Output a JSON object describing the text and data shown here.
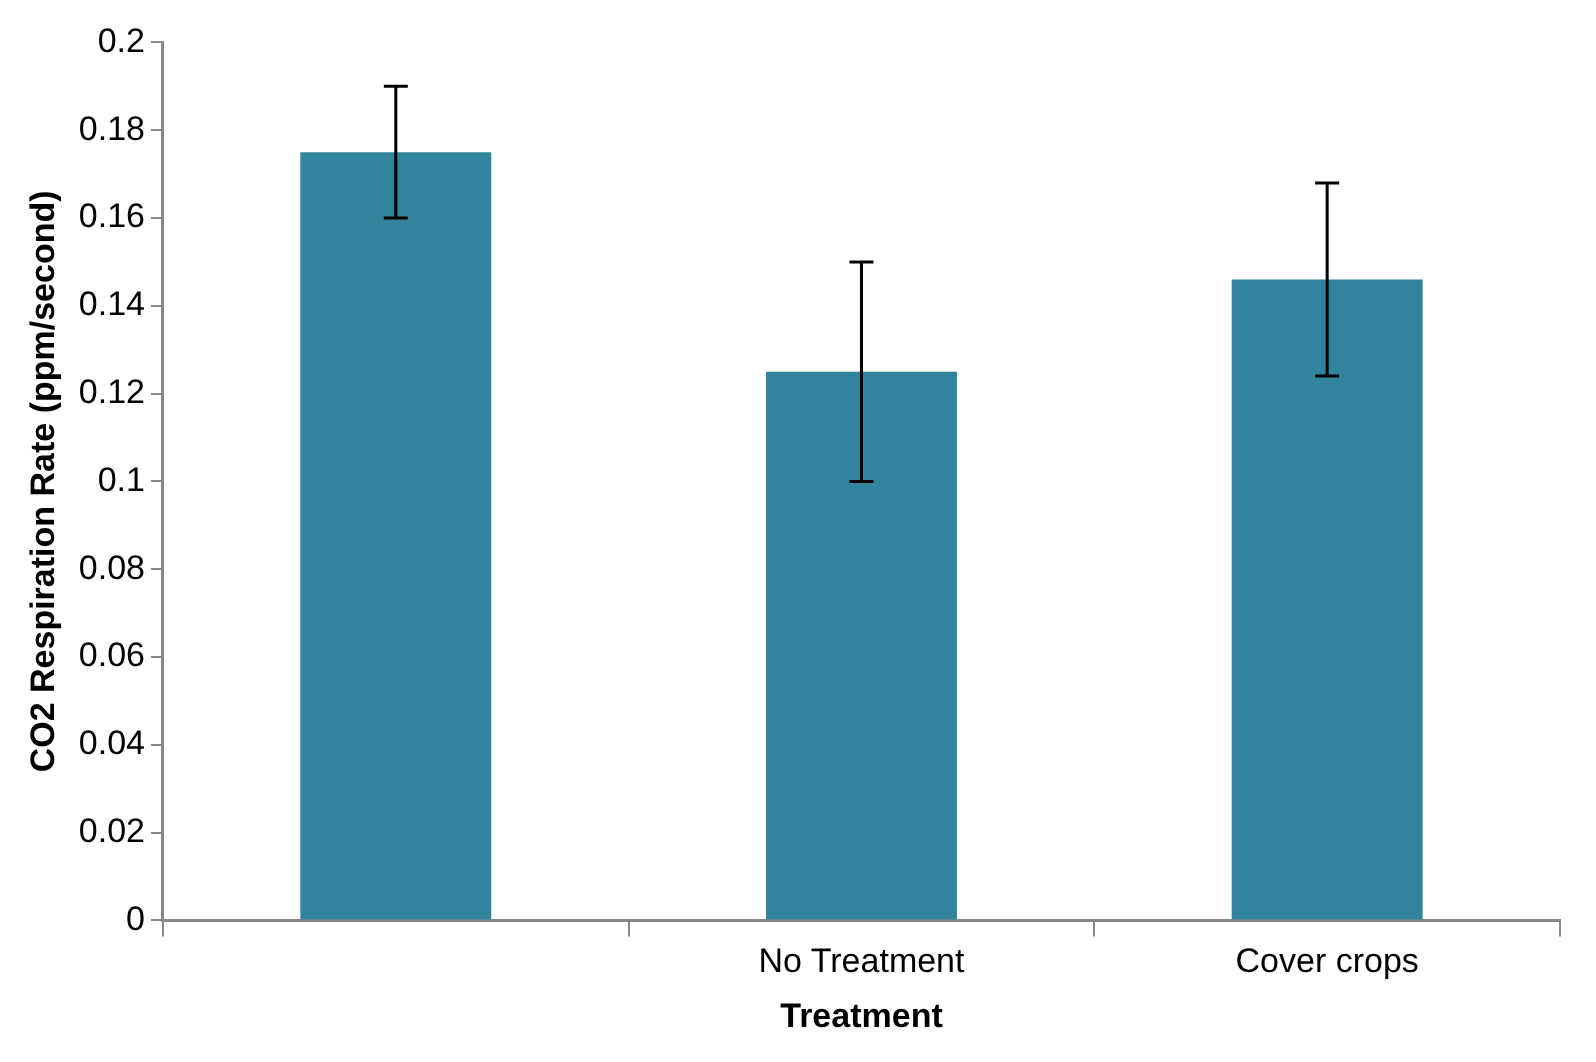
{
  "chart_data": {
    "type": "bar",
    "xlabel": "Treatment",
    "ylabel": "CO2 Respiration Rate (ppm/second)",
    "categories": [
      null,
      "No Treatment",
      "Cover crops"
    ],
    "values": [
      0.175,
      0.125,
      0.146
    ],
    "color": "#31849b",
    "errors": [
      [
        0.16,
        0.19
      ],
      [
        0.1,
        0.15
      ],
      [
        0.124,
        0.168
      ]
    ],
    "ylim": [
      0,
      0.2
    ],
    "yticks": [
      0,
      0.02,
      0.04,
      0.06,
      0.08,
      0.1,
      0.12,
      0.14,
      0.16,
      0.18,
      0.2
    ],
    "grid": false,
    "legend": false
  }
}
